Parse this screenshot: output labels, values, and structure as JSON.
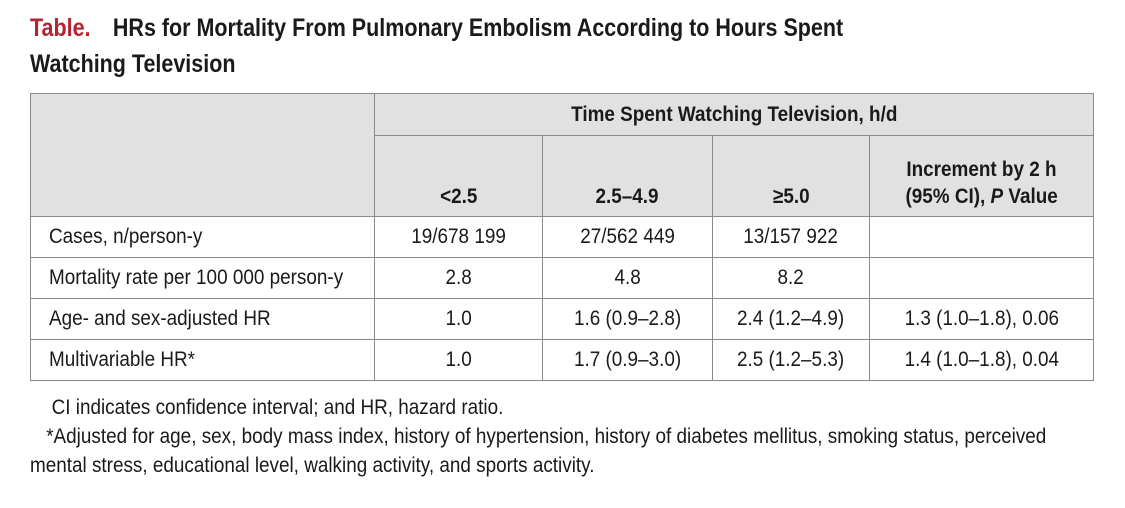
{
  "title": {
    "label": "Table.",
    "text_line1": "HRs for Mortality From Pulmonary Embolism According to Hours Spent",
    "text_line2": "Watching Television"
  },
  "table": {
    "group_header": "Time Spent Watching Television, h/d",
    "columns": [
      "<2.5",
      "2.5–4.9",
      "≥5.0"
    ],
    "increment_header": {
      "line1": "Increment by 2 h",
      "line2_prefix": "(95% CI), ",
      "line2_italic": "P",
      "line2_suffix": " Value"
    },
    "rows": [
      {
        "label": "Cases, n/person-y",
        "values": [
          "19/678 199",
          "27/562 449",
          "13/157 922",
          ""
        ]
      },
      {
        "label": "Mortality rate per 100 000 person-y",
        "values": [
          "2.8",
          "4.8",
          "8.2",
          ""
        ]
      },
      {
        "label": "Age- and sex-adjusted HR",
        "values": [
          "1.0",
          "1.6 (0.9–2.8)",
          "2.4 (1.2–4.9)",
          "1.3 (1.0–1.8), 0.06"
        ]
      },
      {
        "label": "Multivariable HR*",
        "values": [
          "1.0",
          "1.7 (0.9–3.0)",
          "2.5 (1.2–5.3)",
          "1.4 (1.0–1.8), 0.04"
        ]
      }
    ]
  },
  "notes": {
    "abbreviations": "CI indicates confidence interval; and HR, hazard ratio.",
    "footnote": "*Adjusted for age, sex, body mass index, history of hypertension, history of diabetes mellitus, smoking status, perceived mental stress, educational level, walking activity, and sports activity."
  },
  "colors": {
    "title_label": "#b5232f",
    "header_background": "#e1e1e1",
    "border": "#8a8a8a"
  }
}
